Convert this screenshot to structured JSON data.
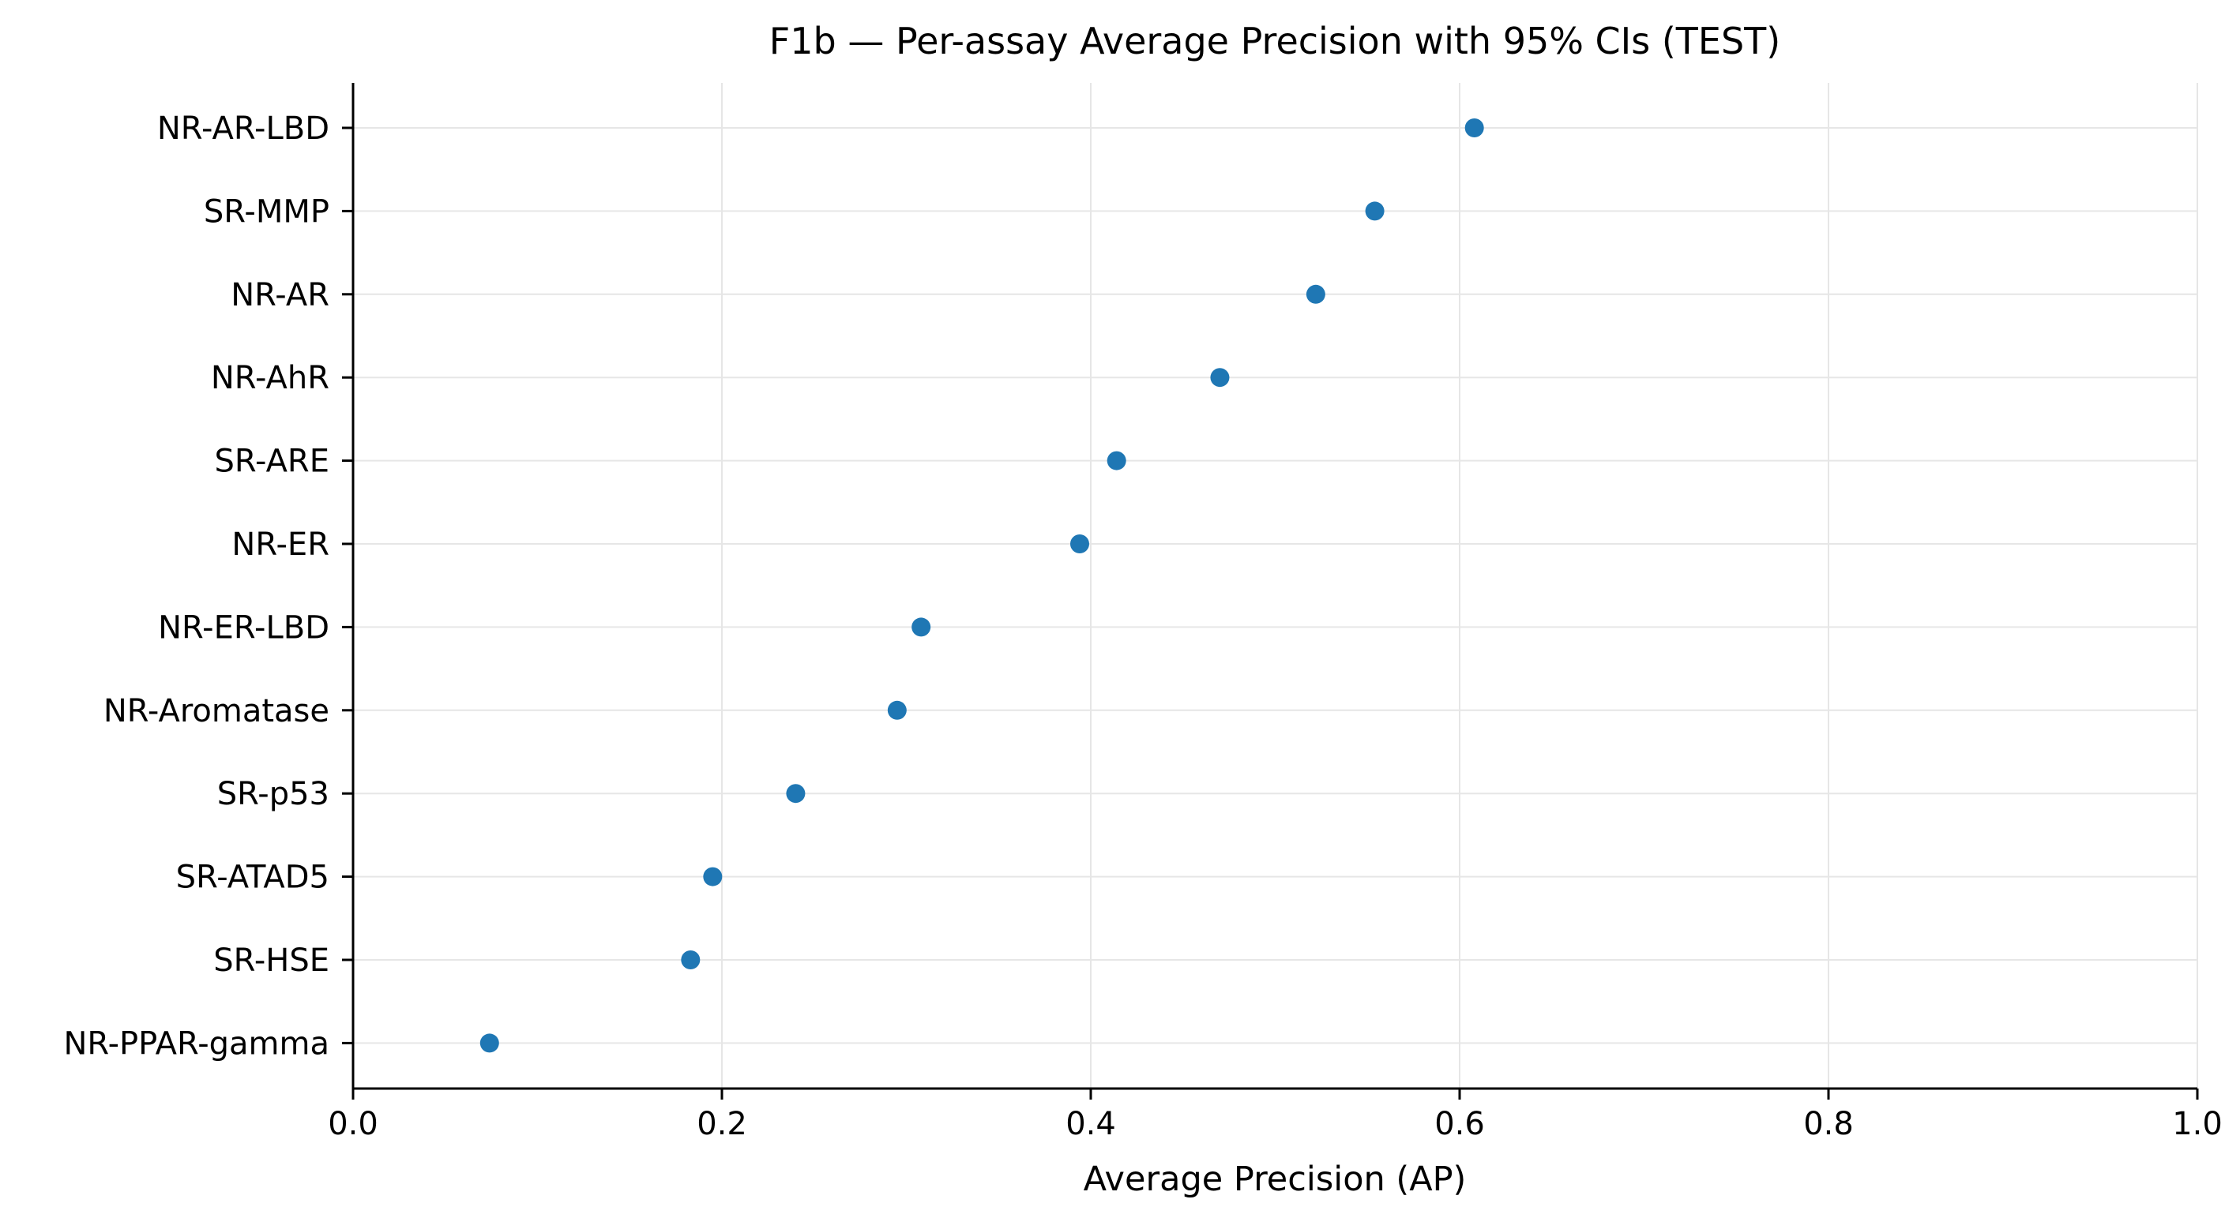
{
  "chart_data": {
    "type": "scatter",
    "title": "F1b — Per-assay Average Precision with 95% CIs (TEST)",
    "xlabel": "Average Precision (AP)",
    "ylabel": "",
    "xlim": [
      0.0,
      1.0
    ],
    "xticks": [
      0.0,
      0.2,
      0.4,
      0.6,
      0.8,
      1.0
    ],
    "xtick_labels": [
      "0.0",
      "0.2",
      "0.4",
      "0.6",
      "0.8",
      "1.0"
    ],
    "grid": true,
    "marker_color": "#1f77b4",
    "categories": [
      "NR-AR-LBD",
      "SR-MMP",
      "NR-AR",
      "NR-AhR",
      "SR-ARE",
      "NR-ER",
      "NR-ER-LBD",
      "NR-Aromatase",
      "SR-p53",
      "SR-ATAD5",
      "SR-HSE",
      "NR-PPAR-gamma"
    ],
    "values": [
      0.608,
      0.554,
      0.522,
      0.47,
      0.414,
      0.394,
      0.308,
      0.295,
      0.24,
      0.195,
      0.183,
      0.074
    ]
  }
}
